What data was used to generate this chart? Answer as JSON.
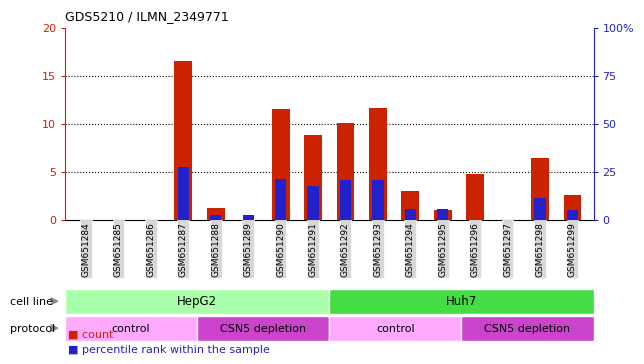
{
  "title": "GDS5210 / ILMN_2349771",
  "samples": [
    "GSM651284",
    "GSM651285",
    "GSM651286",
    "GSM651287",
    "GSM651288",
    "GSM651289",
    "GSM651290",
    "GSM651291",
    "GSM651292",
    "GSM651293",
    "GSM651294",
    "GSM651295",
    "GSM651296",
    "GSM651297",
    "GSM651298",
    "GSM651299"
  ],
  "counts": [
    0,
    0,
    0,
    16.5,
    1.2,
    0,
    11.5,
    8.8,
    10.1,
    11.6,
    3.0,
    1.0,
    4.7,
    0,
    6.4,
    2.6
  ],
  "percentiles_scaled": [
    0,
    0,
    0,
    5.5,
    0.5,
    0.5,
    4.2,
    3.5,
    4.1,
    4.1,
    1.1,
    1.1,
    0,
    0,
    2.2,
    1.0
  ],
  "ylim_left": [
    0,
    20
  ],
  "ylim_right": [
    0,
    100
  ],
  "yticks_left": [
    0,
    5,
    10,
    15,
    20
  ],
  "ytick_labels_left": [
    "0",
    "5",
    "10",
    "15",
    "20"
  ],
  "yticks_right": [
    0,
    25,
    50,
    75,
    100
  ],
  "ytick_labels_right": [
    "0",
    "25",
    "50",
    "75",
    "100%"
  ],
  "bar_color": "#cc2200",
  "pct_color": "#2222cc",
  "cell_line_hepg2_label": "HepG2",
  "cell_line_hepg2_color": "#aaffaa",
  "cell_line_huh7_label": "Huh7",
  "cell_line_huh7_color": "#44dd44",
  "protocol_ctrl_color": "#ffaaff",
  "protocol_csn_color": "#cc44cc",
  "protocol_ctrl_label": "control",
  "protocol_csn_label": "CSN5 depletion",
  "bg_color": "#ffffff",
  "plot_bg_color": "#ffffff",
  "grid_color": "#000000",
  "axis_color_left": "#cc2200",
  "axis_color_right": "#2222cc",
  "xtick_bg_color": "#d8d8d8"
}
